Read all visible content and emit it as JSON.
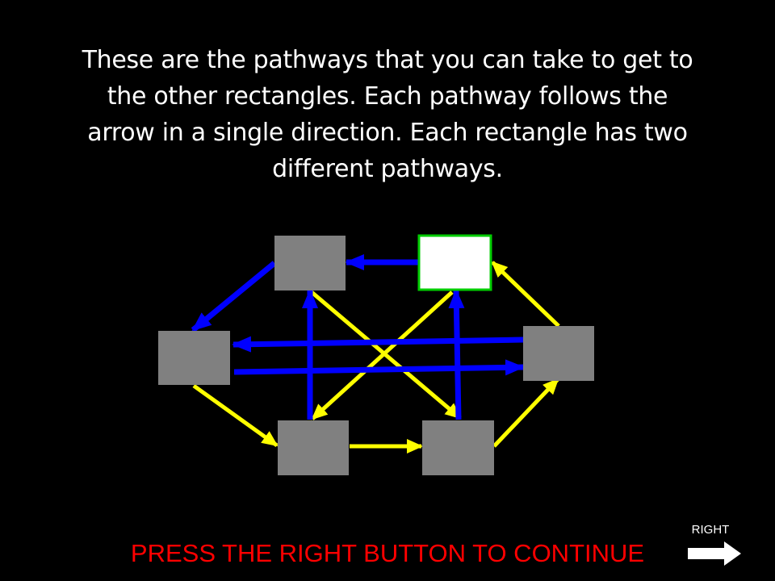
{
  "instructions": {
    "lines": [
      "These are the pathways that you can take to get to",
      "the other rectangles. Each pathway follows the",
      "arrow in a single direction. Each rectangle has two",
      "different pathways."
    ]
  },
  "diagram": {
    "rectangles": [
      {
        "id": "top-left",
        "state": "default"
      },
      {
        "id": "top-right",
        "state": "current"
      },
      {
        "id": "left",
        "state": "default"
      },
      {
        "id": "right",
        "state": "default"
      },
      {
        "id": "bottom-left",
        "state": "default"
      },
      {
        "id": "bottom-right",
        "state": "default"
      }
    ],
    "pathways": [
      {
        "from": "top-right",
        "to": "top-left",
        "color": "blue"
      },
      {
        "from": "top-left",
        "to": "left",
        "color": "blue"
      },
      {
        "from": "left",
        "to": "right",
        "color": "blue"
      },
      {
        "from": "right",
        "to": "left",
        "color": "blue"
      },
      {
        "from": "bottom-left",
        "to": "top-left",
        "color": "blue"
      },
      {
        "from": "bottom-right",
        "to": "top-right",
        "color": "blue"
      },
      {
        "from": "top-left",
        "to": "bottom-right",
        "color": "yellow"
      },
      {
        "from": "top-right",
        "to": "bottom-left",
        "color": "yellow"
      },
      {
        "from": "left",
        "to": "bottom-left",
        "color": "yellow"
      },
      {
        "from": "bottom-left",
        "to": "bottom-right",
        "color": "yellow"
      },
      {
        "from": "bottom-right",
        "to": "right",
        "color": "yellow"
      },
      {
        "from": "right",
        "to": "top-right",
        "color": "yellow"
      }
    ]
  },
  "colors": {
    "background": "#000000",
    "text": "#ffffff",
    "rectangle_fill": "#808080",
    "current_fill": "#ffffff",
    "current_border": "#00cc00",
    "blue_path": "#0000ff",
    "yellow_path": "#ffff00",
    "continue_text": "#ff0000"
  },
  "footer": {
    "continue_text": "PRESS THE RIGHT BUTTON TO CONTINUE",
    "right_label": "RIGHT",
    "right_icon": "right-arrow-icon"
  }
}
